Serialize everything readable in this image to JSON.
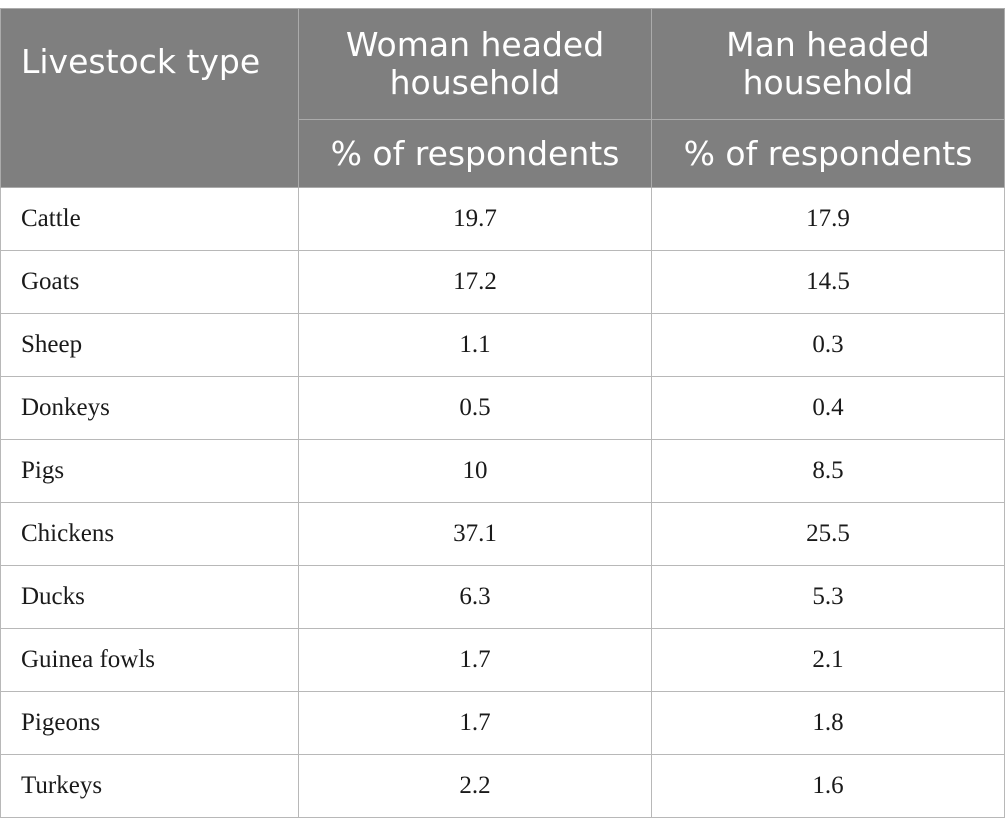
{
  "table": {
    "header": {
      "livestock_type": "Livestock type",
      "woman_headed": "Woman headed household",
      "man_headed": "Man headed household",
      "woman_sub": "% of respondents",
      "man_sub": "% of respondents"
    },
    "rows": [
      {
        "type": "Cattle",
        "woman": "19.7",
        "man": "17.9"
      },
      {
        "type": "Goats",
        "woman": "17.2",
        "man": "14.5"
      },
      {
        "type": "Sheep",
        "woman": "1.1",
        "man": "0.3"
      },
      {
        "type": "Donkeys",
        "woman": "0.5",
        "man": "0.4"
      },
      {
        "type": "Pigs",
        "woman": "10",
        "man": "8.5"
      },
      {
        "type": "Chickens",
        "woman": "37.1",
        "man": "25.5"
      },
      {
        "type": "Ducks",
        "woman": "6.3",
        "man": "5.3"
      },
      {
        "type": "Guinea fowls",
        "woman": "1.7",
        "man": "2.1"
      },
      {
        "type": "Pigeons",
        "woman": "1.7",
        "man": "1.8"
      },
      {
        "type": "Turkeys",
        "woman": "2.2",
        "man": "1.6"
      }
    ]
  }
}
